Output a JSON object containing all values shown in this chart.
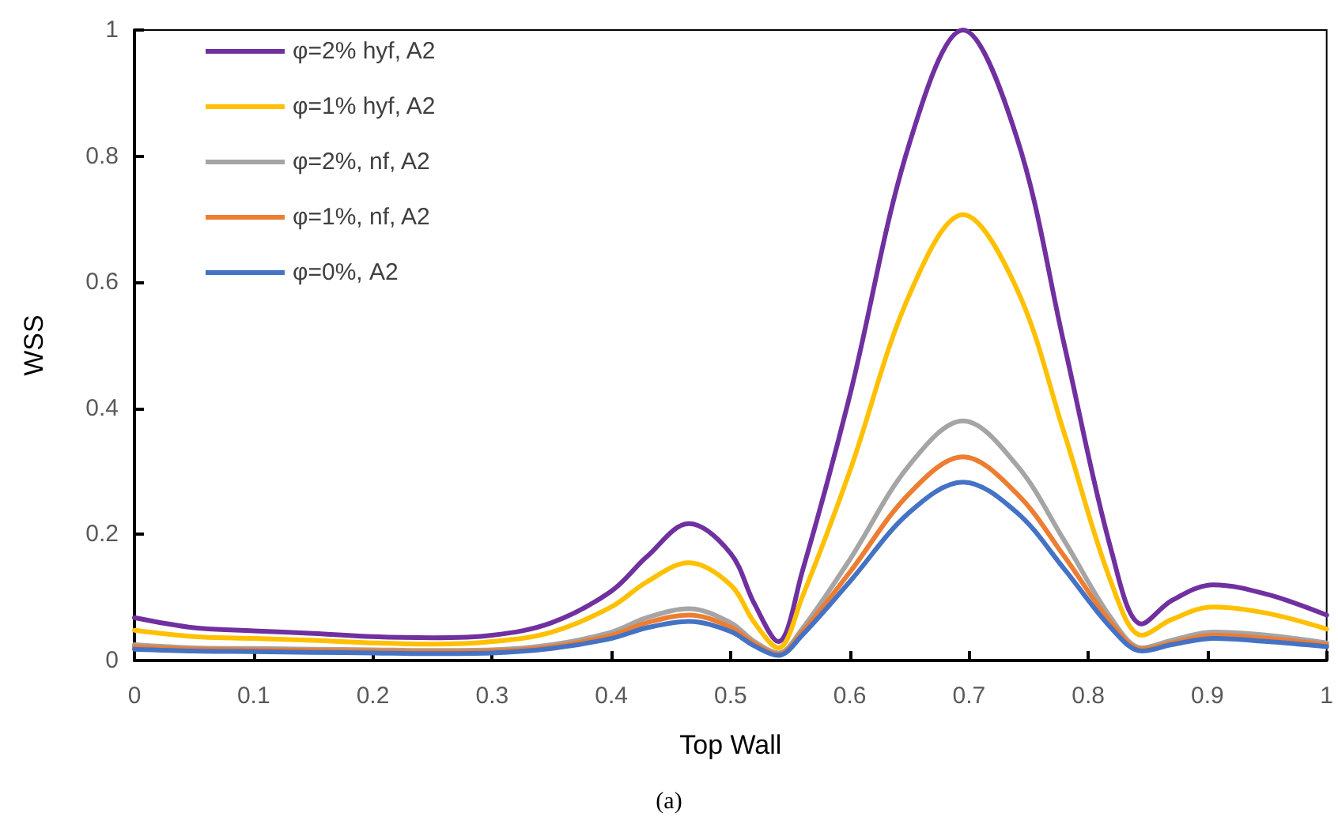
{
  "chart_data": {
    "type": "line",
    "xlabel": "Top Wall",
    "ylabel": "WSS",
    "annotations": [
      "(a)"
    ],
    "x": [
      0,
      0.05,
      0.1,
      0.15,
      0.2,
      0.25,
      0.3,
      0.35,
      0.4,
      0.43,
      0.465,
      0.5,
      0.52,
      0.54,
      0.56,
      0.6,
      0.65,
      0.695,
      0.74,
      0.78,
      0.82,
      0.845,
      0.87,
      0.905,
      0.95,
      1
    ],
    "xlim": [
      0,
      1
    ],
    "xticks": [
      0,
      0.1,
      0.2,
      0.3,
      0.4,
      0.5,
      0.6,
      0.7,
      0.8,
      0.9,
      1
    ],
    "ylim": [
      0,
      1
    ],
    "yticks": [
      0,
      0.2,
      0.4,
      0.6,
      0.8,
      1
    ],
    "grid": false,
    "legend": "top left",
    "marker": "none",
    "line_style": "solid",
    "series": [
      {
        "name": "φ=2% hyf, A2",
        "color": "#7030a0",
        "values": [
          0.068,
          0.052,
          0.047,
          0.043,
          0.038,
          0.036,
          0.04,
          0.06,
          0.11,
          0.165,
          0.217,
          0.17,
          0.09,
          0.03,
          0.14,
          0.42,
          0.82,
          1.0,
          0.83,
          0.5,
          0.17,
          0.058,
          0.095,
          0.12,
          0.105,
          0.072
        ]
      },
      {
        "name": "φ=1% hyf, A2",
        "color": "#ffc000",
        "values": [
          0.048,
          0.038,
          0.035,
          0.032,
          0.028,
          0.026,
          0.03,
          0.045,
          0.085,
          0.125,
          0.155,
          0.12,
          0.06,
          0.02,
          0.1,
          0.3,
          0.58,
          0.707,
          0.59,
          0.36,
          0.12,
          0.04,
          0.065,
          0.085,
          0.075,
          0.05
        ]
      },
      {
        "name": "φ=2%, nf, A2",
        "color": "#a5a5a5",
        "values": [
          0.025,
          0.02,
          0.019,
          0.018,
          0.017,
          0.016,
          0.017,
          0.025,
          0.045,
          0.068,
          0.082,
          0.06,
          0.03,
          0.012,
          0.05,
          0.16,
          0.31,
          0.38,
          0.31,
          0.19,
          0.065,
          0.02,
          0.032,
          0.045,
          0.04,
          0.028
        ]
      },
      {
        "name": "φ=1%, nf, A2",
        "color": "#ed7d31",
        "values": [
          0.022,
          0.018,
          0.017,
          0.016,
          0.015,
          0.014,
          0.015,
          0.022,
          0.04,
          0.06,
          0.072,
          0.053,
          0.027,
          0.01,
          0.045,
          0.14,
          0.265,
          0.323,
          0.265,
          0.165,
          0.058,
          0.018,
          0.028,
          0.04,
          0.035,
          0.025
        ]
      },
      {
        "name": "φ=0%, A2",
        "color": "#4472c4",
        "values": [
          0.018,
          0.015,
          0.014,
          0.013,
          0.012,
          0.011,
          0.012,
          0.019,
          0.035,
          0.052,
          0.062,
          0.046,
          0.023,
          0.008,
          0.04,
          0.125,
          0.235,
          0.283,
          0.235,
          0.145,
          0.05,
          0.015,
          0.025,
          0.035,
          0.03,
          0.022
        ]
      }
    ]
  }
}
